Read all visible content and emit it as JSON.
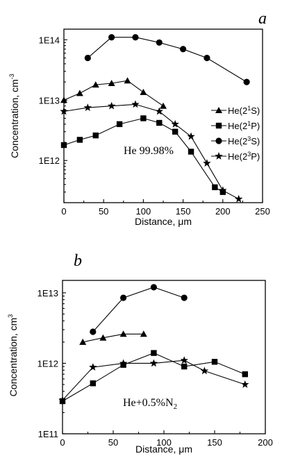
{
  "chart_data": [
    {
      "panel": "a",
      "type": "line",
      "xlabel": "Distance, μm",
      "ylabel": "Concentration, cm",
      "ylabel_sup": "-3",
      "xlim": [
        0,
        250
      ],
      "ylim": [
        200000000000.0,
        150000000000000.0
      ],
      "yscale": "log",
      "xticks": [
        0,
        50,
        100,
        150,
        200,
        250
      ],
      "yticks": [
        1000000000000.0,
        10000000000000.0,
        100000000000000.0
      ],
      "ytick_labels": [
        "1E12",
        "1E13",
        "1E14"
      ],
      "annotation": "He 99.98%",
      "legend_position": "right",
      "series": [
        {
          "name": "He(2",
          "name_sup": "1",
          "name_end": "S)",
          "marker": "triangle",
          "x": [
            0,
            20,
            40,
            60,
            80,
            100,
            125
          ],
          "y": [
            10000000000000.0,
            13000000000000.0,
            18000000000000.0,
            19000000000000.0,
            21000000000000.0,
            13500000000000.0,
            8000000000000.0
          ]
        },
        {
          "name": "He(2",
          "name_sup": "1",
          "name_end": "P)",
          "marker": "square",
          "x": [
            0,
            20,
            40,
            70,
            100,
            120,
            140,
            160,
            190,
            200
          ],
          "y": [
            1800000000000.0,
            2200000000000.0,
            2600000000000.0,
            4000000000000.0,
            5000000000000.0,
            4200000000000.0,
            3000000000000.0,
            1400000000000.0,
            360000000000.0,
            300000000000.0
          ]
        },
        {
          "name": "He(2",
          "name_sup": "3",
          "name_end": "S)",
          "marker": "circle",
          "x": [
            30,
            60,
            90,
            120,
            150,
            180,
            230
          ],
          "y": [
            50000000000000.0,
            110000000000000.0,
            110000000000000.0,
            90000000000000.0,
            70000000000000.0,
            50000000000000.0,
            20000000000000.0
          ]
        },
        {
          "name": "He(2",
          "name_sup": "3",
          "name_end": "P)",
          "marker": "star",
          "x": [
            0,
            30,
            60,
            90,
            120,
            140,
            160,
            180,
            200,
            220
          ],
          "y": [
            6500000000000.0,
            7500000000000.0,
            8000000000000.0,
            8500000000000.0,
            6500000000000.0,
            4000000000000.0,
            2500000000000.0,
            900000000000.0,
            320000000000.0,
            230000000000.0
          ]
        }
      ]
    },
    {
      "panel": "b",
      "type": "line",
      "xlabel": "Distance, μm",
      "ylabel": "Concentration, cm",
      "ylabel_sup": "3",
      "xlim": [
        0,
        200
      ],
      "ylim": [
        100000000000.0,
        15000000000000.0
      ],
      "yscale": "log",
      "xticks": [
        0,
        50,
        100,
        150,
        200
      ],
      "yticks": [
        100000000000.0,
        1000000000000.0,
        10000000000000.0
      ],
      "ytick_labels": [
        "1E11",
        "1E12",
        "1E13"
      ],
      "annotation": "He+0.5%N",
      "annotation_sub": "2",
      "series": [
        {
          "marker": "triangle",
          "x": [
            20,
            40,
            60,
            80
          ],
          "y": [
            2000000000000.0,
            2300000000000.0,
            2600000000000.0,
            2600000000000.0
          ]
        },
        {
          "marker": "circle",
          "x": [
            30,
            60,
            90,
            120
          ],
          "y": [
            2800000000000.0,
            8500000000000.0,
            12000000000000.0,
            8500000000000.0
          ]
        },
        {
          "marker": "square",
          "x": [
            0,
            30,
            60,
            90,
            120,
            150,
            180
          ],
          "y": [
            290000000000.0,
            520000000000.0,
            950000000000.0,
            1400000000000.0,
            900000000000.0,
            1050000000000.0,
            700000000000.0
          ]
        },
        {
          "marker": "star",
          "x": [
            0,
            30,
            60,
            90,
            120,
            140,
            180
          ],
          "y": [
            300000000000.0,
            880000000000.0,
            1000000000000.0,
            1000000000000.0,
            1100000000000.0,
            780000000000.0,
            500000000000.0
          ]
        }
      ]
    }
  ]
}
